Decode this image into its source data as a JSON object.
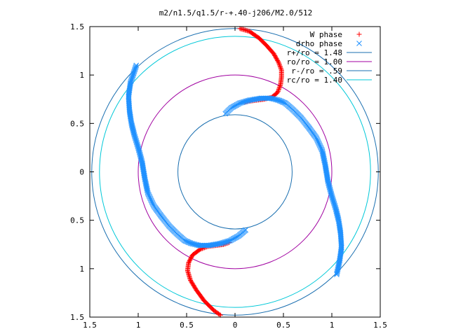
{
  "chart_data": {
    "type": "scatter",
    "title": "m2/n1.5/q1.5/r-+.40-j206/M2.0/512",
    "xlabel": "",
    "ylabel": "",
    "xlim": [
      -1.5,
      1.5
    ],
    "ylim": [
      -1.5,
      1.5
    ],
    "x_tick_labels": [
      "1.5",
      "1",
      "0.5",
      "0",
      "0.5",
      "1",
      "1.5"
    ],
    "y_tick_labels": [
      "1.5",
      "1",
      "0.5",
      "0",
      "0.5",
      "1",
      "1.5"
    ],
    "x_ticks": [
      -1.5,
      -1,
      -0.5,
      0,
      0.5,
      1,
      1.5
    ],
    "y_ticks": [
      1.5,
      1,
      0.5,
      0,
      -0.5,
      -1,
      -1.5
    ],
    "grid": false,
    "legend_position": "top-right",
    "legend": [
      {
        "label": "W phase",
        "kind": "plus",
        "color": "#ff0000"
      },
      {
        "label": "drho phase",
        "kind": "cross",
        "color": "#1e90ff"
      },
      {
        "label": "r+/ro = 1.48",
        "kind": "line",
        "color": "#1a6fb0"
      },
      {
        "label": "ro/ro = 1.00",
        "kind": "line",
        "color": "#a000a0"
      },
      {
        "label": "r-/ro = .59",
        "kind": "line",
        "color": "#1a6fb0"
      },
      {
        "label": "rc/ro = 1.40",
        "kind": "line",
        "color": "#00c8d8"
      }
    ],
    "circles": [
      {
        "name": "r+/ro",
        "radius": 1.48,
        "color": "#1a6fb0"
      },
      {
        "name": "ro/ro",
        "radius": 1.0,
        "color": "#a000a0"
      },
      {
        "name": "r-/ro",
        "radius": 0.59,
        "color": "#1a6fb0"
      },
      {
        "name": "rc/ro",
        "radius": 1.4,
        "color": "#00c8d8"
      }
    ],
    "series": [
      {
        "name": "W phase",
        "marker": "plus",
        "color": "#ff0000",
        "branches": [
          [
            [
              0.05,
              1.48
            ],
            [
              0.15,
              1.45
            ],
            [
              0.25,
              1.38
            ],
            [
              0.33,
              1.3
            ],
            [
              0.4,
              1.22
            ],
            [
              0.45,
              1.13
            ],
            [
              0.48,
              1.05
            ],
            [
              0.48,
              0.98
            ],
            [
              0.47,
              0.9
            ],
            [
              0.44,
              0.82
            ],
            [
              0.38,
              0.77
            ],
            [
              0.3,
              0.75
            ],
            [
              0.22,
              0.74
            ],
            [
              0.15,
              0.73
            ],
            [
              0.1,
              0.72
            ]
          ],
          [
            [
              -0.15,
              -1.48
            ],
            [
              -0.22,
              -1.43
            ],
            [
              -0.32,
              -1.33
            ],
            [
              -0.4,
              -1.22
            ],
            [
              -0.46,
              -1.12
            ],
            [
              -0.49,
              -1.02
            ],
            [
              -0.48,
              -0.94
            ],
            [
              -0.44,
              -0.86
            ],
            [
              -0.36,
              -0.8
            ],
            [
              -0.28,
              -0.77
            ],
            [
              -0.2,
              -0.76
            ],
            [
              -0.12,
              -0.75
            ],
            [
              -0.06,
              -0.73
            ]
          ]
        ]
      },
      {
        "name": "drho phase",
        "marker": "cross",
        "color": "#1e90ff",
        "branches": [
          [
            [
              -0.1,
              0.6
            ],
            [
              -0.04,
              0.66
            ],
            [
              0.05,
              0.71
            ],
            [
              0.15,
              0.74
            ],
            [
              0.27,
              0.76
            ],
            [
              0.37,
              0.76
            ],
            [
              0.45,
              0.74
            ],
            [
              0.52,
              0.71
            ],
            [
              0.6,
              0.64
            ],
            [
              0.68,
              0.56
            ],
            [
              0.76,
              0.46
            ],
            [
              0.84,
              0.35
            ],
            [
              0.9,
              0.22
            ],
            [
              0.93,
              0.08
            ],
            [
              0.96,
              -0.1
            ],
            [
              1.0,
              -0.25
            ],
            [
              1.04,
              -0.38
            ],
            [
              1.07,
              -0.5
            ],
            [
              1.09,
              -0.63
            ],
            [
              1.1,
              -0.78
            ],
            [
              1.08,
              -0.92
            ],
            [
              1.05,
              -1.06
            ]
          ],
          [
            [
              0.11,
              -0.6
            ],
            [
              0.04,
              -0.66
            ],
            [
              -0.05,
              -0.71
            ],
            [
              -0.15,
              -0.74
            ],
            [
              -0.27,
              -0.76
            ],
            [
              -0.37,
              -0.76
            ],
            [
              -0.45,
              -0.74
            ],
            [
              -0.52,
              -0.71
            ],
            [
              -0.6,
              -0.64
            ],
            [
              -0.68,
              -0.56
            ],
            [
              -0.76,
              -0.46
            ],
            [
              -0.84,
              -0.35
            ],
            [
              -0.9,
              -0.22
            ],
            [
              -0.93,
              -0.08
            ],
            [
              -0.96,
              0.1
            ],
            [
              -1.0,
              0.25
            ],
            [
              -1.04,
              0.38
            ],
            [
              -1.07,
              0.5
            ],
            [
              -1.09,
              0.63
            ],
            [
              -1.1,
              0.78
            ],
            [
              -1.08,
              0.92
            ],
            [
              -1.02,
              1.1
            ]
          ]
        ]
      }
    ]
  }
}
